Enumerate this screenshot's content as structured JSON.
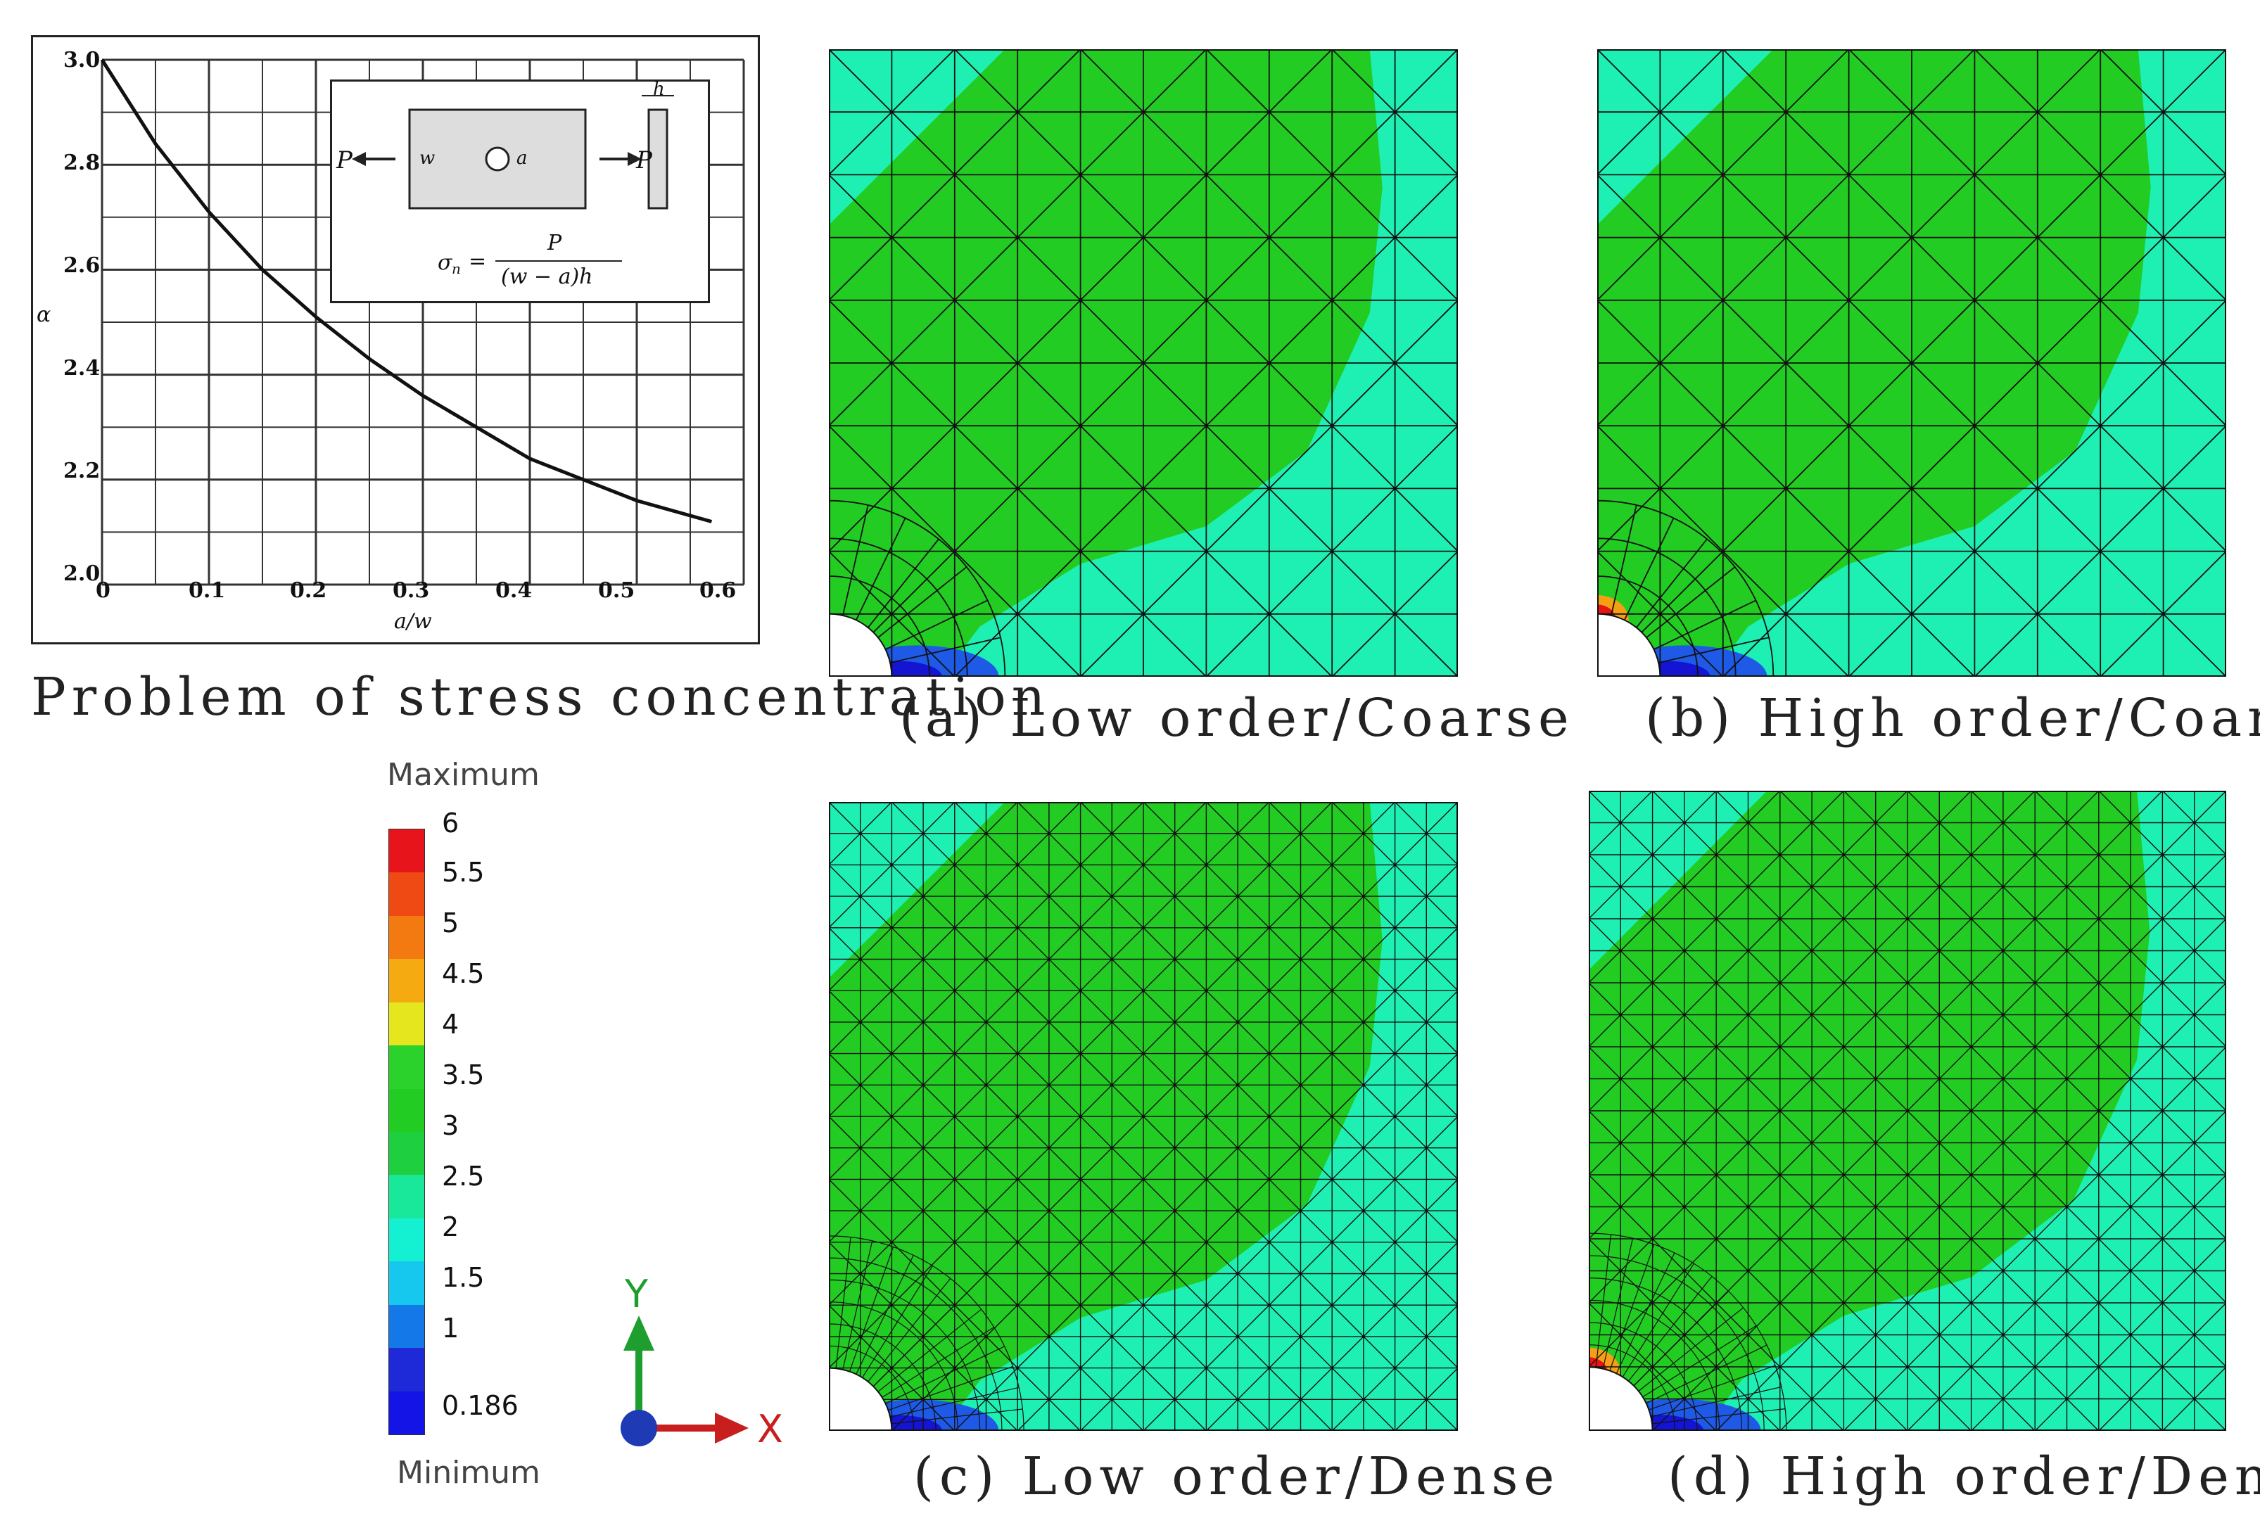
{
  "graph": {
    "x_ticks": [
      "0",
      "0.1",
      "0.2",
      "0.3",
      "0.4",
      "0.5",
      "0.6"
    ],
    "y_ticks": [
      "3.0",
      "2.8",
      "2.6",
      "2.4",
      "2.2",
      "2.0"
    ],
    "xlabel": "a/w",
    "ylabel": "α",
    "inset": {
      "load_left": "P",
      "load_right": "P",
      "width_symbol": "w",
      "hole_symbol": "a",
      "thickness_symbol": "h",
      "formula_lhs": "σ",
      "formula_sub": "n",
      "formula_eq": "=",
      "formula_num": "P",
      "formula_den": "(w − a)h"
    },
    "curve": [
      [
        0,
        3.0
      ],
      [
        0.05,
        2.84
      ],
      [
        0.1,
        2.71
      ],
      [
        0.15,
        2.6
      ],
      [
        0.2,
        2.51
      ],
      [
        0.25,
        2.43
      ],
      [
        0.3,
        2.36
      ],
      [
        0.35,
        2.3
      ],
      [
        0.4,
        2.24
      ],
      [
        0.45,
        2.2
      ],
      [
        0.5,
        2.16
      ],
      [
        0.57,
        2.12
      ]
    ],
    "xlim": [
      0,
      0.6
    ],
    "ylim": [
      2.0,
      3.0
    ]
  },
  "captions": {
    "main": "Problem of stress concentration",
    "a": "(a) Low order/Coarse",
    "b": "(b) High order/Coarse",
    "c": "(c) Low order/Dense",
    "d": "(d) High order/Dense"
  },
  "legend": {
    "max_label": "Maximum",
    "min_label": "Minimum",
    "values": [
      "6",
      "5.5",
      "5",
      "4.5",
      "4",
      "3.5",
      "3",
      "2.5",
      "2",
      "1.5",
      "1",
      "0.186"
    ],
    "colors": [
      "#e8141c",
      "#f04a14",
      "#f27a10",
      "#f5aa12",
      "#e6e61e",
      "#2bd22b",
      "#22cc22",
      "#1ed040",
      "#19e89b",
      "#14f0d2",
      "#16c8ee",
      "#1478e8",
      "#1e2ad8",
      "#1414e6"
    ]
  },
  "axes": {
    "y_label": "Y",
    "x_label": "X",
    "y_color": "#1e9e2e",
    "x_color": "#c81e1e",
    "origin_color": "#1e3ab4"
  },
  "palette": {
    "cyan": "#1ef0b4",
    "green": "#22cc22",
    "blue": "#1e5ae6",
    "darkblue": "#1414d2",
    "red": "#e61414",
    "orange": "#f5a014"
  }
}
